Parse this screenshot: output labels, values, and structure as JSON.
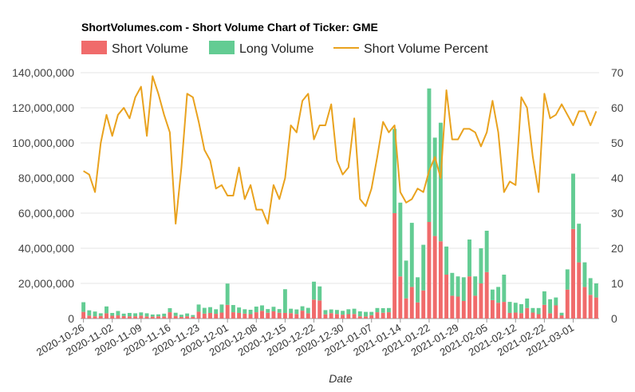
{
  "chart_data": {
    "type": "bar",
    "title": "ShortVolumes.com - Short Volume Chart of Ticker: GME",
    "xlabel": "Date",
    "ylabel": "",
    "stacked": true,
    "legend_position": "top-left",
    "grid": true,
    "ylim": [
      0,
      140000000
    ],
    "y2lim": [
      0,
      70
    ],
    "yticks": [
      "0",
      "20,000,000",
      "40,000,000",
      "60,000,000",
      "80,000,000",
      "100,000,000",
      "120,000,000",
      "140,000,000"
    ],
    "y2ticks": [
      "0",
      "10",
      "20",
      "30",
      "40",
      "50",
      "60",
      "70"
    ],
    "xtick_labels": [
      "2020-10-26",
      "2020-11-02",
      "2020-11-09",
      "2020-11-16",
      "2020-11-23",
      "2020-12-01",
      "2020-12-08",
      "2020-12-15",
      "2020-12-22",
      "2020-12-30",
      "2021-01-07",
      "2021-01-14",
      "2021-01-22",
      "2021-01-29",
      "2021-02-05",
      "2021-02-12",
      "2021-02-22",
      "2021-03-01"
    ],
    "xtick_index": [
      0,
      5,
      10,
      15,
      20,
      25,
      30,
      35,
      40,
      45,
      50,
      55,
      60,
      65,
      70,
      75,
      80,
      85
    ],
    "categories": [
      "2020-10-26",
      "2020-10-27",
      "2020-10-28",
      "2020-10-29",
      "2020-10-30",
      "2020-11-02",
      "2020-11-03",
      "2020-11-04",
      "2020-11-05",
      "2020-11-06",
      "2020-11-09",
      "2020-11-10",
      "2020-11-11",
      "2020-11-12",
      "2020-11-13",
      "2020-11-16",
      "2020-11-17",
      "2020-11-18",
      "2020-11-19",
      "2020-11-20",
      "2020-11-23",
      "2020-11-24",
      "2020-11-25",
      "2020-11-26",
      "2020-11-27",
      "2020-12-01",
      "2020-12-02",
      "2020-12-03",
      "2020-12-04",
      "2020-12-07",
      "2020-12-08",
      "2020-12-09",
      "2020-12-10",
      "2020-12-11",
      "2020-12-14",
      "2020-12-15",
      "2020-12-16",
      "2020-12-17",
      "2020-12-18",
      "2020-12-21",
      "2020-12-22",
      "2020-12-23",
      "2020-12-24",
      "2020-12-28",
      "2020-12-29",
      "2020-12-30",
      "2020-12-31",
      "2021-01-04",
      "2021-01-05",
      "2021-01-06",
      "2021-01-07",
      "2021-01-08",
      "2021-01-11",
      "2021-01-12",
      "2021-01-13",
      "2021-01-14",
      "2021-01-15",
      "2021-01-18",
      "2021-01-19",
      "2021-01-20",
      "2021-01-22",
      "2021-01-25",
      "2021-01-26",
      "2021-01-27",
      "2021-01-28",
      "2021-01-29",
      "2021-02-01",
      "2021-02-02",
      "2021-02-03",
      "2021-02-04",
      "2021-02-05",
      "2021-02-08",
      "2021-02-09",
      "2021-02-10",
      "2021-02-11",
      "2021-02-12",
      "2021-02-16",
      "2021-02-17",
      "2021-02-18",
      "2021-02-19",
      "2021-02-22",
      "2021-02-23",
      "2021-02-24",
      "2021-02-25",
      "2021-02-26",
      "2021-03-01",
      "2021-03-02",
      "2021-03-03",
      "2021-03-04",
      "2021-03-05"
    ],
    "series": [
      {
        "name": "Short Volume",
        "kind": "bar",
        "color": "#f06b6b",
        "values": [
          3800000,
          1700000,
          1300000,
          1500000,
          3000000,
          1600000,
          1800000,
          1400000,
          1300000,
          1300000,
          1700000,
          1200000,
          1100000,
          1300000,
          1200000,
          3600000,
          1500000,
          900000,
          1300000,
          1000000,
          3900000,
          2800000,
          3200000,
          2700000,
          3400000,
          7800000,
          3600000,
          3200000,
          2800000,
          2500000,
          3600000,
          4400000,
          3300000,
          4100000,
          3300000,
          3200000,
          3100000,
          2600000,
          4500000,
          3000000,
          10800000,
          10300000,
          2400000,
          3100000,
          2600000,
          2200000,
          2500000,
          2600000,
          1300000,
          1200000,
          1900000,
          3600000,
          3300000,
          3600000,
          60000000,
          24000000,
          11500000,
          18000000,
          9200000,
          16000000,
          55000000,
          47000000,
          44000000,
          25000000,
          13000000,
          12500000,
          10000000,
          24000000,
          13000000,
          20000000,
          26500000,
          10500000,
          9000000,
          9500000,
          3200000,
          3400000,
          3100000,
          6000000,
          3400000,
          2500000,
          7800000,
          3000000,
          7500000,
          1800000,
          16500000,
          51000000,
          32000000,
          18000000,
          13500000,
          12000000
        ],
        "values_long": [
          5500000,
          3000000,
          2700000,
          1500000,
          3900000,
          1600000,
          2500000,
          1400000,
          1900000,
          1700000,
          1800000,
          1800000,
          1200000,
          1100000,
          1600000,
          2300000,
          1800000,
          1300000,
          1600000,
          1000000,
          4100000,
          3300000,
          3300000,
          2600000,
          4600000,
          12100000,
          4100000,
          3100000,
          2500000,
          2500000,
          3200000,
          3100000,
          2100000,
          2600000,
          2100000,
          13500000,
          2500000,
          2600000,
          2500000,
          3100000,
          10200000,
          8000000,
          2400000,
          2100000,
          2300000,
          2200000,
          2800000,
          3000000,
          2800000,
          2600000,
          1900000,
          2400000,
          2600000,
          2400000,
          48000000,
          42000000,
          21500000,
          36500000,
          14300000,
          26000000,
          76000000,
          56000000,
          67500000,
          16000000,
          13000000,
          11500000,
          13500000,
          21000000,
          11000000,
          20000000,
          23500000,
          6000000,
          9000000,
          15500000,
          6300000,
          5600000,
          5100000,
          5400000,
          2600000,
          3500000,
          7700000,
          8000000,
          4500000,
          1500000,
          11500000,
          31500000,
          22000000,
          14000000,
          9500000,
          8000000
        ]
      },
      {
        "name": "Long Volume",
        "kind": "bar",
        "color": "#63cc93"
      },
      {
        "name": "Short Volume Percent",
        "kind": "line",
        "axis": "right",
        "color": "#e9a21e",
        "values": [
          42,
          41,
          36,
          50,
          58,
          52,
          58,
          60,
          57,
          63,
          66,
          52,
          69,
          64,
          58,
          53,
          27,
          43,
          64,
          63,
          56,
          48,
          45,
          37,
          38,
          35,
          35,
          43,
          34,
          38,
          31,
          31,
          27,
          38,
          34,
          40,
          55,
          53,
          62,
          64,
          51,
          55,
          55,
          61,
          45,
          41,
          43,
          57,
          34,
          32,
          37,
          46,
          56,
          53,
          55,
          36,
          33,
          34,
          37,
          36,
          42,
          46,
          40,
          65,
          51,
          51,
          54,
          54,
          53,
          49,
          53,
          62,
          53,
          36,
          39,
          38,
          63,
          60,
          46,
          36,
          64,
          57,
          58,
          61,
          58,
          55,
          59,
          59,
          55,
          59
        ]
      }
    ]
  }
}
